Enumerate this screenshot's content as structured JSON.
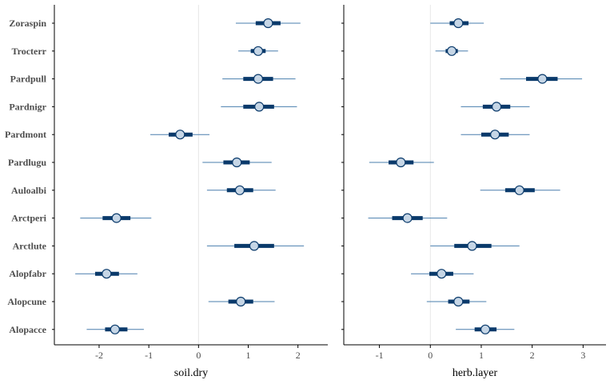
{
  "chart_data": {
    "type": "interval",
    "categories": [
      "Zoraspin",
      "Trocterr",
      "Pardpull",
      "Pardnigr",
      "Pardmont",
      "Pardlugu",
      "Auloalbi",
      "Arctperi",
      "Arctlute",
      "Alopfabr",
      "Alopcune",
      "Alopacce"
    ],
    "colors": {
      "outer_line": "#4a7fae",
      "inner_bar": "#0a3a6b",
      "point_fill": "#c6d6e6",
      "point_stroke": "#0a3a6b",
      "zero_line": "#e6e6e6",
      "axis": "#000000"
    },
    "panels": [
      {
        "xlabel": "soil.dry",
        "xlim": [
          -2.9,
          2.6
        ],
        "xticks": [
          -2,
          -1,
          0,
          1,
          2
        ],
        "xtick_labels": [
          "-2",
          "-1",
          "0",
          "1",
          "2"
        ],
        "series": [
          {
            "name": "Zoraspin",
            "median": 1.4,
            "inner": [
              1.15,
              1.65
            ],
            "outer": [
              0.75,
              2.05
            ]
          },
          {
            "name": "Trocterr",
            "median": 1.2,
            "inner": [
              1.05,
              1.35
            ],
            "outer": [
              0.8,
              1.6
            ]
          },
          {
            "name": "Pardpull",
            "median": 1.2,
            "inner": [
              0.9,
              1.5
            ],
            "outer": [
              0.48,
              1.95
            ]
          },
          {
            "name": "Pardnigr",
            "median": 1.22,
            "inner": [
              0.9,
              1.52
            ],
            "outer": [
              0.45,
              1.98
            ]
          },
          {
            "name": "Pardmont",
            "median": -0.37,
            "inner": [
              -0.6,
              -0.12
            ],
            "outer": [
              -0.97,
              0.22
            ]
          },
          {
            "name": "Pardlugu",
            "median": 0.77,
            "inner": [
              0.5,
              1.03
            ],
            "outer": [
              0.08,
              1.47
            ]
          },
          {
            "name": "Auloalbi",
            "median": 0.83,
            "inner": [
              0.57,
              1.1
            ],
            "outer": [
              0.17,
              1.55
            ]
          },
          {
            "name": "Arctperi",
            "median": -1.65,
            "inner": [
              -1.93,
              -1.37
            ],
            "outer": [
              -2.38,
              -0.95
            ]
          },
          {
            "name": "Arctlute",
            "median": 1.12,
            "inner": [
              0.72,
              1.52
            ],
            "outer": [
              0.17,
              2.12
            ]
          },
          {
            "name": "Alopfabr",
            "median": -1.85,
            "inner": [
              -2.08,
              -1.6
            ],
            "outer": [
              -2.48,
              -1.23
            ]
          },
          {
            "name": "Alopcune",
            "median": 0.85,
            "inner": [
              0.6,
              1.1
            ],
            "outer": [
              0.2,
              1.53
            ]
          },
          {
            "name": "Alopacce",
            "median": -1.68,
            "inner": [
              -1.88,
              -1.43
            ],
            "outer": [
              -2.25,
              -1.1
            ]
          }
        ]
      },
      {
        "xlabel": "herb.layer",
        "xlim": [
          -1.7,
          3.45
        ],
        "xticks": [
          -1,
          0,
          1,
          2,
          3
        ],
        "xtick_labels": [
          "-1",
          "0",
          "1",
          "2",
          "3"
        ],
        "series": [
          {
            "name": "Zoraspin",
            "median": 0.55,
            "inner": [
              0.38,
              0.75
            ],
            "outer": [
              0.0,
              1.05
            ]
          },
          {
            "name": "Trocterr",
            "median": 0.42,
            "inner": [
              0.3,
              0.54
            ],
            "outer": [
              0.1,
              0.74
            ]
          },
          {
            "name": "Pardpull",
            "median": 2.2,
            "inner": [
              1.88,
              2.5
            ],
            "outer": [
              1.37,
              2.98
            ]
          },
          {
            "name": "Pardnigr",
            "median": 1.3,
            "inner": [
              1.03,
              1.57
            ],
            "outer": [
              0.6,
              1.95
            ]
          },
          {
            "name": "Pardmont",
            "median": 1.27,
            "inner": [
              1.0,
              1.54
            ],
            "outer": [
              0.6,
              1.95
            ]
          },
          {
            "name": "Pardlugu",
            "median": -0.58,
            "inner": [
              -0.82,
              -0.33
            ],
            "outer": [
              -1.2,
              0.07
            ]
          },
          {
            "name": "Auloalbi",
            "median": 1.75,
            "inner": [
              1.47,
              2.05
            ],
            "outer": [
              0.98,
              2.55
            ]
          },
          {
            "name": "Arctperi",
            "median": -0.45,
            "inner": [
              -0.75,
              -0.15
            ],
            "outer": [
              -1.22,
              0.33
            ]
          },
          {
            "name": "Arctlute",
            "median": 0.82,
            "inner": [
              0.47,
              1.2
            ],
            "outer": [
              0.0,
              1.75
            ]
          },
          {
            "name": "Alopfabr",
            "median": 0.22,
            "inner": [
              -0.02,
              0.45
            ],
            "outer": [
              -0.38,
              0.85
            ]
          },
          {
            "name": "Alopcune",
            "median": 0.55,
            "inner": [
              0.35,
              0.77
            ],
            "outer": [
              -0.07,
              1.1
            ]
          },
          {
            "name": "Alopacce",
            "median": 1.08,
            "inner": [
              0.87,
              1.3
            ],
            "outer": [
              0.5,
              1.65
            ]
          }
        ]
      }
    ]
  }
}
